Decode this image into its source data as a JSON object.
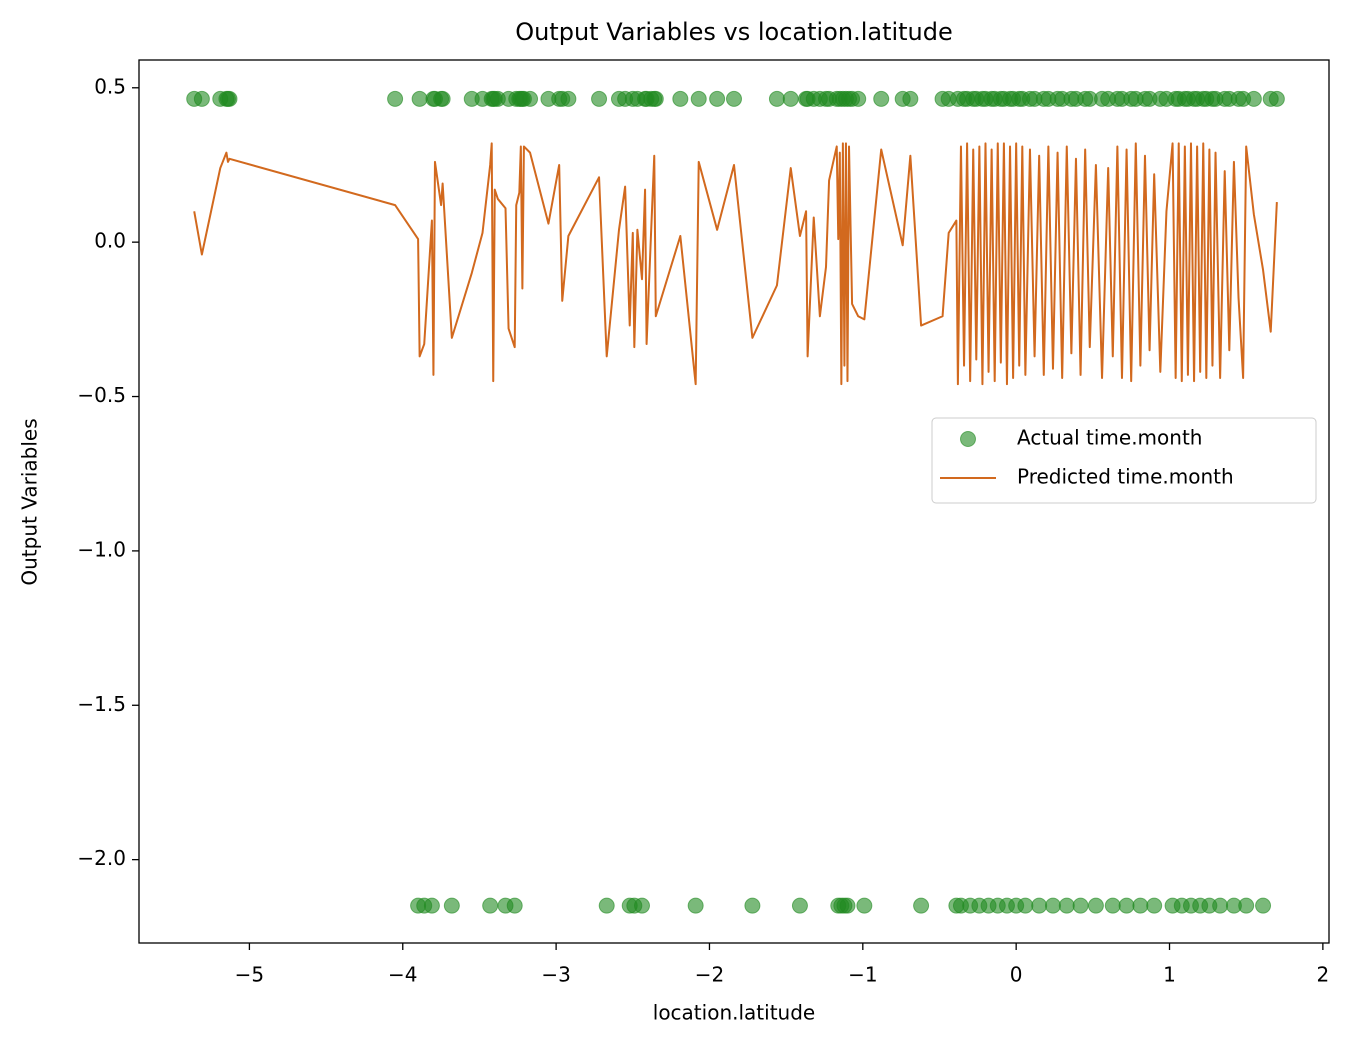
{
  "chart_data": {
    "type": "scatter",
    "title": "Output Variables vs location.latitude",
    "xlabel": "location.latitude",
    "ylabel": "Output Variables",
    "xlim": [
      -5.72,
      2.04
    ],
    "ylim": [
      -2.27,
      0.59
    ],
    "xticks": [
      {
        "value": -5,
        "label": "−5"
      },
      {
        "value": -4,
        "label": "−4"
      },
      {
        "value": -3,
        "label": "−3"
      },
      {
        "value": -2,
        "label": "−2"
      },
      {
        "value": -1,
        "label": "−1"
      },
      0,
      1,
      2
    ],
    "yticks": [
      {
        "value": 0.5,
        "label": "0.5"
      },
      {
        "value": 0,
        "label": "0.0"
      },
      {
        "value": -0.5,
        "label": "−0.5"
      },
      {
        "value": -1,
        "label": "−1.0"
      },
      {
        "value": -1.5,
        "label": "−1.5"
      },
      {
        "value": -2,
        "label": "−2.0"
      }
    ],
    "grid": false,
    "legend": "center right",
    "x": [
      -5.36,
      -5.31,
      -5.19,
      -5.15,
      -5.14,
      -5.13,
      -4.05,
      -3.9,
      -3.89,
      -3.86,
      -3.81,
      -3.8,
      -3.79,
      -3.75,
      -3.74,
      -3.68,
      -3.55,
      -3.48,
      -3.43,
      -3.42,
      -3.41,
      -3.4,
      -3.38,
      -3.33,
      -3.31,
      -3.27,
      -3.26,
      -3.24,
      -3.23,
      -3.22,
      -3.21,
      -3.17,
      -3.05,
      -2.98,
      -2.96,
      -2.92,
      -2.72,
      -2.67,
      -2.59,
      -2.55,
      -2.52,
      -2.5,
      -2.49,
      -2.47,
      -2.44,
      -2.42,
      -2.41,
      -2.38,
      -2.36,
      -2.35,
      -2.19,
      -2.09,
      -2.07,
      -1.95,
      -1.84,
      -1.72,
      -1.56,
      -1.47,
      -1.41,
      -1.37,
      -1.36,
      -1.32,
      -1.28,
      -1.24,
      -1.22,
      -1.17,
      -1.16,
      -1.15,
      -1.14,
      -1.13,
      -1.12,
      -1.11,
      -1.1,
      -1.09,
      -1.07,
      -1.03,
      -0.99,
      -0.88,
      -0.74,
      -0.69,
      -0.62,
      -0.48,
      -0.44,
      -0.39,
      -0.38,
      -0.36,
      -0.34,
      -0.32,
      -0.3,
      -0.28,
      -0.26,
      -0.24,
      -0.22,
      -0.2,
      -0.18,
      -0.16,
      -0.14,
      -0.12,
      -0.1,
      -0.08,
      -0.06,
      -0.04,
      -0.02,
      0,
      0.02,
      0.04,
      0.06,
      0.09,
      0.12,
      0.15,
      0.18,
      0.21,
      0.24,
      0.27,
      0.3,
      0.33,
      0.36,
      0.39,
      0.42,
      0.45,
      0.48,
      0.52,
      0.56,
      0.6,
      0.63,
      0.66,
      0.69,
      0.72,
      0.75,
      0.78,
      0.81,
      0.84,
      0.87,
      0.9,
      0.94,
      0.98,
      1.02,
      1.04,
      1.06,
      1.08,
      1.1,
      1.12,
      1.14,
      1.16,
      1.18,
      1.2,
      1.22,
      1.24,
      1.26,
      1.28,
      1.3,
      1.33,
      1.36,
      1.39,
      1.42,
      1.45,
      1.48,
      1.5,
      1.55,
      1.61,
      1.66,
      1.7
    ],
    "series": [
      {
        "name": "Actual time.month",
        "mark": "scatter",
        "color": "#228b22",
        "alpha": 0.6,
        "values": [
          0.464,
          0.464,
          0.464,
          0.464,
          0.464,
          0.464,
          0.464,
          -2.149,
          0.464,
          -2.149,
          -2.149,
          0.464,
          0.464,
          0.464,
          0.464,
          -2.149,
          0.464,
          0.464,
          -2.149,
          0.464,
          0.464,
          0.464,
          0.464,
          -2.149,
          0.464,
          -2.149,
          0.464,
          0.464,
          0.464,
          0.464,
          0.464,
          0.464,
          0.464,
          0.464,
          0.464,
          0.464,
          0.464,
          -2.149,
          0.464,
          0.464,
          -2.149,
          0.464,
          -2.149,
          0.464,
          -2.149,
          0.464,
          0.464,
          0.464,
          0.464,
          0.464,
          0.464,
          -2.149,
          0.464,
          0.464,
          0.464,
          -2.149,
          0.464,
          0.464,
          -2.149,
          0.464,
          0.464,
          0.464,
          0.464,
          0.464,
          0.464,
          0.464,
          -2.149,
          0.464,
          -2.149,
          0.464,
          -2.149,
          0.464,
          -2.149,
          0.464,
          0.464,
          0.464,
          -2.149,
          0.464,
          0.464,
          0.464,
          -2.149,
          0.464,
          0.464,
          -2.149,
          0.464,
          -2.149,
          0.464,
          0.464,
          -2.149,
          0.464,
          0.464,
          -2.149,
          0.464,
          0.464,
          -2.149,
          0.464,
          0.464,
          -2.149,
          0.464,
          0.464,
          -2.149,
          0.464,
          0.464,
          -2.149,
          0.464,
          0.464,
          -2.149,
          0.464,
          0.464,
          -2.149,
          0.464,
          0.464,
          -2.149,
          0.464,
          0.464,
          -2.149,
          0.464,
          0.464,
          -2.149,
          0.464,
          0.464,
          -2.149,
          0.464,
          0.464,
          -2.149,
          0.464,
          0.464,
          -2.149,
          0.464,
          0.464,
          -2.149,
          0.464,
          0.464,
          -2.149,
          0.464,
          0.464,
          -2.149,
          0.464,
          0.464,
          -2.149,
          0.464,
          0.464,
          -2.149,
          0.464,
          0.464,
          -2.149,
          0.464,
          0.464,
          -2.149,
          0.464,
          0.464,
          -2.149,
          0.464,
          0.464,
          -2.149,
          0.464,
          0.464,
          -2.149,
          0.464,
          -2.149,
          0.464,
          0.464
        ]
      },
      {
        "name": "Predicted time.month",
        "mark": "line",
        "color": "#d2691e",
        "values": [
          0.1,
          -0.04,
          0.24,
          0.29,
          0.26,
          0.27,
          0.12,
          0.01,
          -0.37,
          -0.33,
          0.07,
          -0.43,
          0.26,
          0.12,
          0.19,
          -0.31,
          -0.1,
          0.03,
          0.25,
          0.32,
          -0.45,
          0.17,
          0.14,
          0.11,
          -0.28,
          -0.34,
          0.12,
          0.16,
          0.31,
          -0.15,
          0.31,
          0.29,
          0.06,
          0.25,
          -0.19,
          0.02,
          0.21,
          -0.37,
          0.04,
          0.18,
          -0.27,
          0.03,
          -0.34,
          0.04,
          -0.12,
          0.17,
          -0.33,
          0.04,
          0.28,
          -0.24,
          0.02,
          -0.46,
          0.26,
          0.04,
          0.25,
          -0.31,
          -0.14,
          0.24,
          0.02,
          0.1,
          -0.37,
          0.08,
          -0.24,
          -0.08,
          0.2,
          0.31,
          0.01,
          0.29,
          -0.46,
          0.32,
          -0.4,
          0.32,
          -0.45,
          0.31,
          -0.2,
          -0.24,
          -0.25,
          0.3,
          -0.01,
          0.28,
          -0.27,
          -0.24,
          0.03,
          0.07,
          -0.46,
          0.31,
          -0.4,
          0.32,
          -0.45,
          0.3,
          -0.38,
          0.31,
          -0.46,
          0.32,
          -0.42,
          0.3,
          -0.45,
          0.32,
          -0.39,
          0.32,
          -0.46,
          0.31,
          -0.44,
          0.32,
          -0.4,
          0.31,
          -0.43,
          0.3,
          -0.37,
          0.28,
          -0.43,
          0.31,
          -0.41,
          0.29,
          -0.44,
          0.31,
          -0.36,
          0.27,
          -0.43,
          0.3,
          -0.34,
          0.25,
          -0.44,
          0.24,
          -0.37,
          0.31,
          -0.44,
          0.3,
          -0.45,
          0.32,
          -0.4,
          0.28,
          -0.35,
          0.22,
          -0.42,
          0.1,
          0.32,
          -0.44,
          0.32,
          -0.45,
          0.31,
          -0.43,
          0.32,
          -0.45,
          0.31,
          -0.42,
          0.32,
          -0.44,
          0.3,
          -0.4,
          0.29,
          -0.44,
          0.23,
          -0.35,
          0.26,
          -0.18,
          -0.44,
          0.31,
          0.09,
          -0.09,
          -0.29,
          0.13
        ]
      }
    ]
  }
}
